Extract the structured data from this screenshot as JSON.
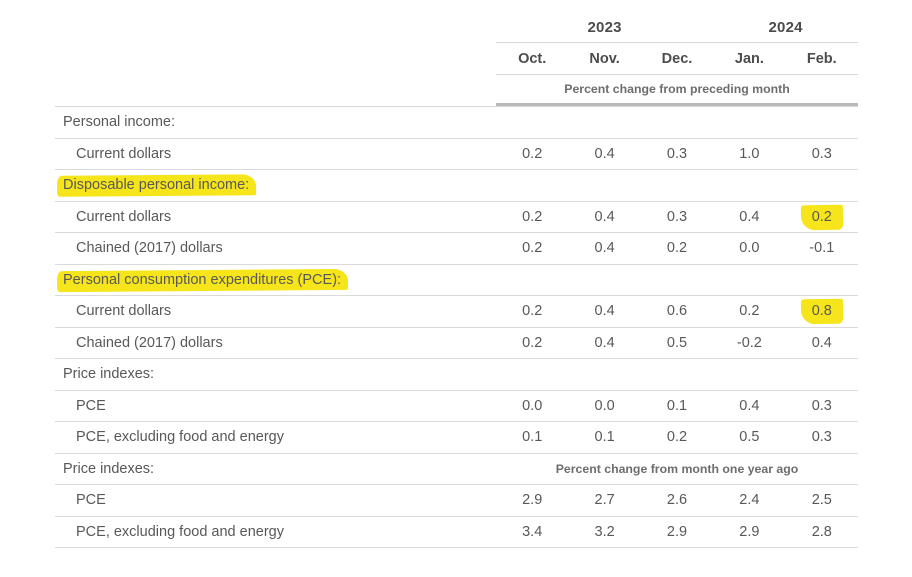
{
  "table": {
    "year_groups": [
      {
        "label": "2023",
        "span": 3
      },
      {
        "label": "2024",
        "span": 2
      }
    ],
    "months": [
      "Oct.",
      "Nov.",
      "Dec.",
      "Jan.",
      "Feb."
    ],
    "span_note_top": "Percent change from preceding month",
    "rows": [
      {
        "type": "section",
        "label": "Personal income:",
        "highlight_label": false
      },
      {
        "type": "item",
        "label": "Current dollars",
        "values": [
          "0.2",
          "0.4",
          "0.3",
          "1.0",
          "0.3"
        ],
        "highlight_cells": []
      },
      {
        "type": "section",
        "label": "Disposable personal income:",
        "highlight_label": true
      },
      {
        "type": "item",
        "label": "Current dollars",
        "values": [
          "0.2",
          "0.4",
          "0.3",
          "0.4",
          "0.2"
        ],
        "highlight_cells": [
          4
        ]
      },
      {
        "type": "item",
        "label": "Chained (2017) dollars",
        "values": [
          "0.2",
          "0.4",
          "0.2",
          "0.0",
          "-0.1"
        ],
        "highlight_cells": []
      },
      {
        "type": "section",
        "label": "Personal consumption expenditures (PCE):",
        "highlight_label": true
      },
      {
        "type": "item",
        "label": "Current dollars",
        "values": [
          "0.2",
          "0.4",
          "0.6",
          "0.2",
          "0.8"
        ],
        "highlight_cells": [
          4
        ]
      },
      {
        "type": "item",
        "label": "Chained (2017) dollars",
        "values": [
          "0.2",
          "0.4",
          "0.5",
          "-0.2",
          "0.4"
        ],
        "highlight_cells": []
      },
      {
        "type": "section",
        "label": "Price indexes:",
        "highlight_label": false
      },
      {
        "type": "item",
        "label": "PCE",
        "values": [
          "0.0",
          "0.0",
          "0.1",
          "0.4",
          "0.3"
        ],
        "highlight_cells": []
      },
      {
        "type": "item",
        "label": "PCE, excluding food and energy",
        "values": [
          "0.1",
          "0.1",
          "0.2",
          "0.5",
          "0.3"
        ],
        "highlight_cells": []
      },
      {
        "type": "section",
        "label": "Price indexes:",
        "highlight_label": false,
        "span_note": "Percent change from month one year ago"
      },
      {
        "type": "item",
        "label": "PCE",
        "values": [
          "2.9",
          "2.7",
          "2.6",
          "2.4",
          "2.5"
        ],
        "highlight_cells": []
      },
      {
        "type": "item",
        "label": "PCE, excluding food and energy",
        "values": [
          "3.4",
          "3.2",
          "2.9",
          "2.9",
          "2.8"
        ],
        "highlight_cells": []
      }
    ],
    "colors": {
      "highlight": "#f6e51b",
      "text": "#58585a",
      "header_text": "#4c4c4e",
      "line": "#d8d8d8",
      "thick_line": "#b9b9ba"
    }
  }
}
